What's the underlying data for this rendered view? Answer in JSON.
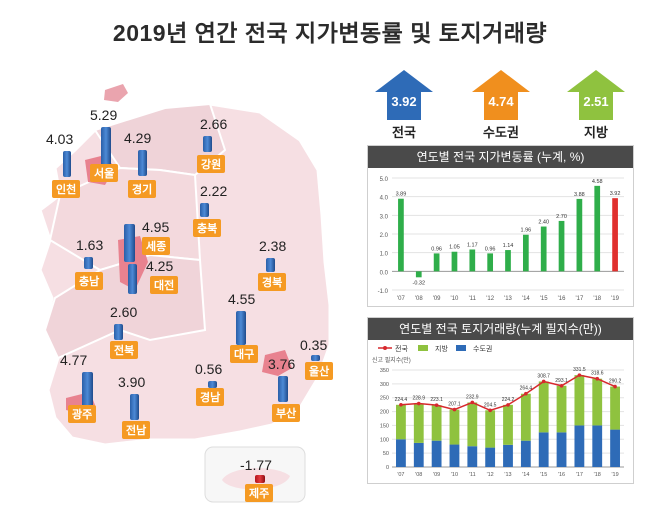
{
  "title": "2019년 연간 전국 지가변동률 및 토지거래량",
  "summary": [
    {
      "label": "전국",
      "value": "3.92",
      "color": "#2e6bb7"
    },
    {
      "label": "수도권",
      "value": "4.74",
      "color": "#f08f1e"
    },
    {
      "label": "지방",
      "value": "2.51",
      "color": "#8fc23f"
    }
  ],
  "map": {
    "regions": [
      {
        "name": "인천",
        "value": "4.03"
      },
      {
        "name": "서울",
        "value": "5.29"
      },
      {
        "name": "경기",
        "value": "4.29"
      },
      {
        "name": "강원",
        "value": "2.66"
      },
      {
        "name": "충북",
        "value": "2.22"
      },
      {
        "name": "세종",
        "value": "4.95"
      },
      {
        "name": "충남",
        "value": "1.63"
      },
      {
        "name": "대전",
        "value": "4.25"
      },
      {
        "name": "경북",
        "value": "2.38"
      },
      {
        "name": "대구",
        "value": "4.55"
      },
      {
        "name": "전북",
        "value": "2.60"
      },
      {
        "name": "광주",
        "value": "4.77"
      },
      {
        "name": "전남",
        "value": "3.90"
      },
      {
        "name": "경남",
        "value": "0.56"
      },
      {
        "name": "부산",
        "value": "3.76"
      },
      {
        "name": "울산",
        "value": "0.35"
      },
      {
        "name": "제주",
        "value": "-1.77"
      }
    ]
  },
  "chart_data": [
    {
      "type": "bar",
      "title": "연도별 전국 지가변동률 (누계, %)",
      "categories": [
        "'07",
        "'08",
        "'09",
        "'10",
        "'11",
        "'12",
        "'13",
        "'14",
        "'15",
        "'16",
        "'17",
        "'18",
        "'19"
      ],
      "values": [
        3.89,
        -0.32,
        0.96,
        1.05,
        1.17,
        0.96,
        1.14,
        1.96,
        2.4,
        2.7,
        3.88,
        4.58,
        3.92
      ],
      "ylim": [
        -1.0,
        5.0
      ],
      "yticks": [
        "5.0",
        "4.0",
        "3.0",
        "2.0",
        "1.0",
        "0.0",
        "-1.0"
      ],
      "colors": {
        "normal": "#2fae4a",
        "last": "#e0302e"
      },
      "grid": true
    },
    {
      "type": "bar",
      "title": "연도별 전국 토지거래량(누계 필지수(만))",
      "legend": [
        "전국",
        "지방",
        "수도권"
      ],
      "ylabel_note": "신고 필지수(만)",
      "categories": [
        "'07",
        "'08",
        "'09",
        "'10",
        "'11",
        "'12",
        "'13",
        "'14",
        "'15",
        "'16",
        "'17",
        "'18",
        "'19"
      ],
      "yticks": [
        "350",
        "300",
        "250",
        "200",
        "150",
        "100",
        "50",
        "0"
      ],
      "ylim": [
        0,
        350
      ],
      "series": [
        {
          "name": "전국",
          "type": "line",
          "values": [
            224.4,
            228.9,
            223.1,
            207.1,
            232.9,
            204.5,
            224.2,
            264.4,
            308.7,
            293.1,
            331.5,
            318.6,
            290.2
          ]
        },
        {
          "name": "지방",
          "type": "bar",
          "values": [
            124.4,
            141.9,
            128.1,
            126.1,
            157.9,
            134.5,
            144.2,
            169.4,
            183.7,
            168.1,
            181.5,
            168.6,
            155.2
          ]
        },
        {
          "name": "수도권",
          "type": "bar",
          "values": [
            100,
            87,
            95,
            81,
            75,
            70,
            80,
            95,
            125,
            125,
            150,
            150,
            135
          ]
        }
      ],
      "colors": {
        "전국": "#d7292e",
        "지방": "#8fc23f",
        "수도권": "#2e6bb7"
      }
    }
  ]
}
